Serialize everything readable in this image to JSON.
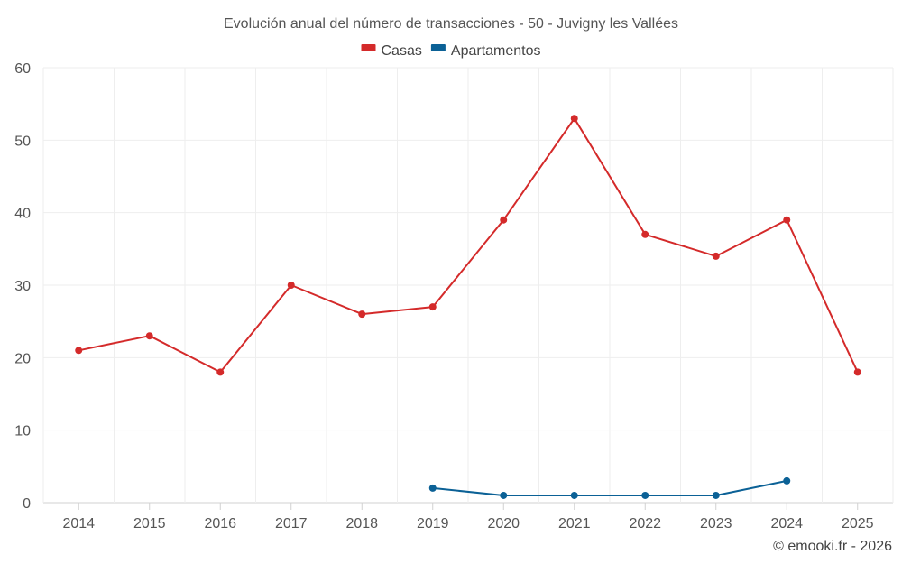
{
  "chart_data": {
    "type": "line",
    "title": "Evolución anual del número de transacciones - 50 - Juvigny les Vallées",
    "categories": [
      "2014",
      "2015",
      "2016",
      "2017",
      "2018",
      "2019",
      "2020",
      "2021",
      "2022",
      "2023",
      "2024",
      "2025"
    ],
    "ylim": [
      0,
      60
    ],
    "yticks": [
      0,
      10,
      20,
      30,
      40,
      50,
      60
    ],
    "grid": true,
    "legend_position": "top-center",
    "series": [
      {
        "name": "Casas",
        "color": "#d42a2a",
        "values": [
          21,
          23,
          18,
          30,
          26,
          27,
          39,
          53,
          37,
          34,
          39,
          18
        ]
      },
      {
        "name": "Apartamentos",
        "color": "#0b6196",
        "values": [
          null,
          null,
          null,
          null,
          null,
          2,
          1,
          1,
          1,
          1,
          3,
          null
        ]
      }
    ],
    "credit": "© emooki.fr - 2026"
  }
}
